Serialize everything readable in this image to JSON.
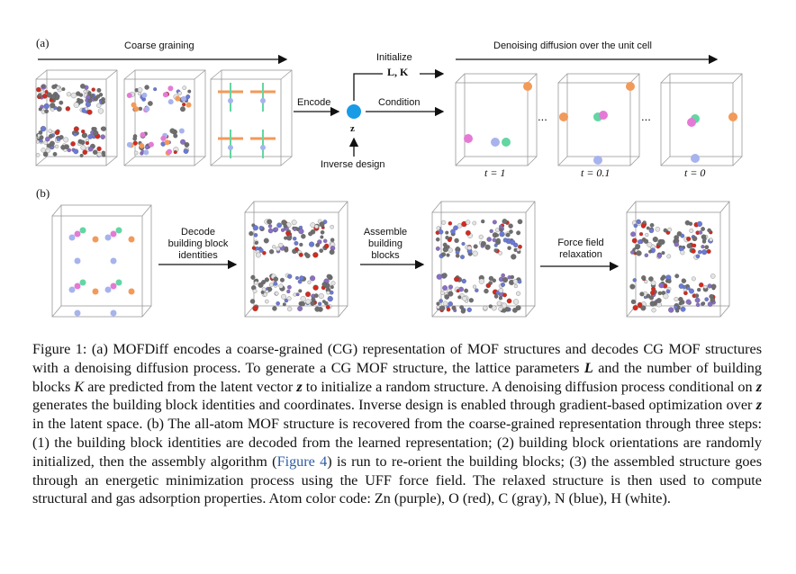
{
  "panel_a": {
    "label": "(a)",
    "coarse_graining": "Coarse graining",
    "encode": "Encode",
    "z": "z",
    "initialize": "Initialize",
    "init_vars": "L, K",
    "condition": "Condition",
    "inverse_design": "Inverse design",
    "denoising": "Denoising diffusion over the unit cell",
    "dots": "...",
    "t1": "t = 1",
    "t2": "t = 0.1",
    "t3": "t = 0"
  },
  "panel_b": {
    "label": "(b)",
    "decode_1": "Decode",
    "decode_2": "building block",
    "decode_3": "identities",
    "assemble_1": "Assemble",
    "assemble_2": "building",
    "assemble_3": "blocks",
    "force_1": "Force field",
    "force_2": "relaxation"
  },
  "caption": {
    "p1": "Figure 1: (a) MOFDiff encodes a coarse-grained (CG) representation of MOF structures and decodes CG MOF structures with a denoising diffusion process. To generate a CG MOF structure, the lattice parameters ",
    "L": "L",
    "p2": " and the number of building blocks ",
    "K": "K",
    "p3": " are predicted from the latent vector ",
    "z1": "z",
    "p4": " to initialize a random structure. A denoising diffusion process conditional on ",
    "z2": "z",
    "p5": " generates the building block identities and coordinates. Inverse design is enabled through gradient-based optimization over ",
    "z3": "z",
    "p6": " in the latent space. (b) The all-atom MOF structure is recovered from the coarse-grained representation through three steps: (1) the building block identities are decoded from the learned representation; (2) building block orientations are randomly initialized, then the assembly algorithm (",
    "link": "Figure 4",
    "p7": ") is run to re-orient the building blocks; (3) the assembled structure goes through an energetic minimization process using the UFF force field. The relaxed structure is then used to compute structural and gas adsorption properties. Atom color code: Zn (purple), O (red), C (gray), N (blue), H (white)."
  },
  "colors": {
    "zn": "#8a6fc4",
    "o": "#d42a1f",
    "c": "#6e6e6e",
    "n": "#6b7ad6",
    "h": "#e4e4e4",
    "cg_orange": "#f29a5a",
    "cg_pink": "#e47ad6",
    "cg_blue": "#a7b3ec",
    "cg_green": "#63d6a3",
    "latent": "#1a9be6",
    "link": "#2d5ba6"
  }
}
